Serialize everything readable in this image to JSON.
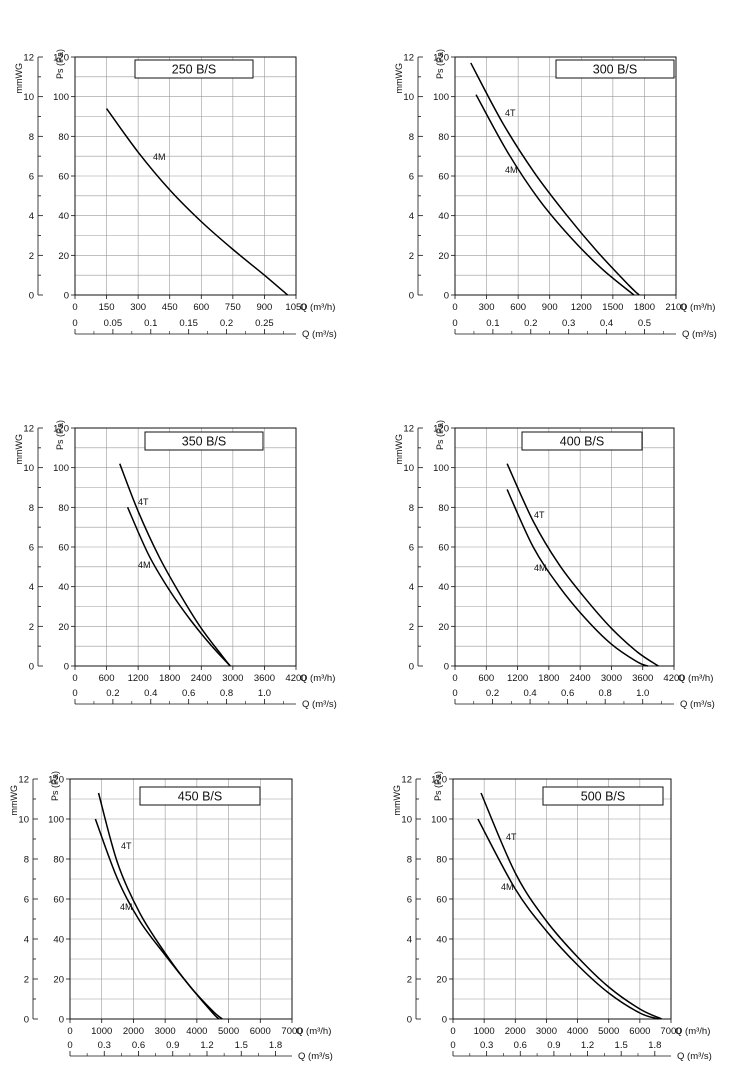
{
  "chart_data": [
    {
      "type": "line",
      "title": "250 B/S",
      "ylabel_left": "mmWG",
      "ylabel_right": "Ps (Pa)",
      "xlabel_primary": "Q (m³/h)",
      "xlabel_secondary": "Q (m³/s)",
      "xlim": [
        0,
        1050
      ],
      "ylim": [
        0,
        120
      ],
      "mmwg_ticks": [
        "0",
        "2",
        "4",
        "6",
        "8",
        "10",
        "12"
      ],
      "pa_ticks": [
        "0",
        "20",
        "40",
        "60",
        "80",
        "100",
        "120"
      ],
      "xticks": [
        0,
        150,
        300,
        450,
        600,
        750,
        900,
        1050
      ],
      "xtick_labels": [
        "0",
        "150",
        "300",
        "450",
        "600",
        "750",
        "900",
        "1050"
      ],
      "x2_ticks": [
        0,
        0.05,
        0.1,
        0.15,
        0.2,
        0.25
      ],
      "x2_tick_labels": [
        "0",
        "0.05",
        "0.1",
        "0.15",
        "0.2",
        "0.25"
      ],
      "grid": true,
      "series": [
        {
          "name": "4M",
          "x": [
            150,
            300,
            450,
            600,
            750,
            900,
            1010
          ],
          "y": [
            94,
            72,
            53,
            37,
            23,
            10,
            0
          ]
        }
      ]
    },
    {
      "type": "line",
      "title": "300 B/S",
      "ylabel_left": "mmWG",
      "ylabel_right": "Ps (Pa)",
      "xlabel_primary": "Q (m³/h)",
      "xlabel_secondary": "Q (m³/s)",
      "xlim": [
        0,
        2100
      ],
      "ylim": [
        0,
        120
      ],
      "mmwg_ticks": [
        "0",
        "2",
        "4",
        "6",
        "8",
        "10",
        "12"
      ],
      "pa_ticks": [
        "0",
        "20",
        "40",
        "60",
        "80",
        "100",
        "120"
      ],
      "xticks": [
        0,
        300,
        600,
        900,
        1200,
        1500,
        1800,
        2100
      ],
      "xtick_labels": [
        "0",
        "300",
        "600",
        "900",
        "1200",
        "1500",
        "1800",
        "2100"
      ],
      "x2_ticks": [
        0,
        0.1,
        0.2,
        0.3,
        0.4,
        0.5
      ],
      "x2_tick_labels": [
        "0",
        "0.1",
        "0.2",
        "0.3",
        "0.4",
        "0.5"
      ],
      "grid": true,
      "series": [
        {
          "name": "4T",
          "x": [
            150,
            450,
            750,
            1050,
            1350,
            1650,
            1750
          ],
          "y": [
            117,
            87,
            62,
            41,
            22,
            5,
            0
          ]
        },
        {
          "name": "4M",
          "x": [
            200,
            500,
            800,
            1100,
            1400,
            1700
          ],
          "y": [
            101,
            72,
            48,
            29,
            13,
            0
          ]
        }
      ]
    },
    {
      "type": "line",
      "title": "350 B/S",
      "ylabel_left": "mmWG",
      "ylabel_right": "Ps (Pa)",
      "xlabel_primary": "Q (m³/h)",
      "xlabel_secondary": "Q (m³/s)",
      "xlim": [
        0,
        4200
      ],
      "ylim": [
        0,
        120
      ],
      "mmwg_ticks": [
        "0",
        "2",
        "4",
        "6",
        "8",
        "10",
        "12"
      ],
      "pa_ticks": [
        "0",
        "20",
        "40",
        "60",
        "80",
        "100",
        "120"
      ],
      "xticks": [
        0,
        600,
        1200,
        1800,
        2400,
        3000,
        3600,
        4200
      ],
      "xtick_labels": [
        "0",
        "600",
        "1200",
        "1800",
        "2400",
        "3000",
        "3600",
        "4200"
      ],
      "x2_ticks": [
        0,
        0.2,
        0.4,
        0.6,
        0.8,
        1.0
      ],
      "x2_tick_labels": [
        "0",
        "0.2",
        "0.4",
        "0.6",
        "0.8",
        "1.0"
      ],
      "grid": true,
      "series": [
        {
          "name": "4T",
          "x": [
            850,
            1200,
            1600,
            2000,
            2400,
            2800,
            2950
          ],
          "y": [
            102,
            78,
            55,
            36,
            19,
            5,
            0
          ]
        },
        {
          "name": "4M",
          "x": [
            1000,
            1400,
            1800,
            2200,
            2600,
            2950
          ],
          "y": [
            80,
            56,
            38,
            23,
            10,
            0
          ]
        }
      ]
    },
    {
      "type": "line",
      "title": "400 B/S",
      "ylabel_left": "mmWG",
      "ylabel_right": "Ps (Pa)",
      "xlabel_primary": "Q (m³/h)",
      "xlabel_secondary": "Q (m³/s)",
      "xlim": [
        0,
        4200
      ],
      "ylim": [
        0,
        120
      ],
      "mmwg_ticks": [
        "0",
        "2",
        "4",
        "6",
        "8",
        "10",
        "12"
      ],
      "pa_ticks": [
        "0",
        "20",
        "40",
        "60",
        "80",
        "100",
        "120"
      ],
      "xticks": [
        0,
        600,
        1200,
        1800,
        2400,
        3000,
        3600,
        4200
      ],
      "xtick_labels": [
        "0",
        "600",
        "1200",
        "1800",
        "2400",
        "3000",
        "3600",
        "4200"
      ],
      "x2_ticks": [
        0,
        0.2,
        0.4,
        0.6,
        0.8,
        1.0
      ],
      "x2_tick_labels": [
        "0",
        "0.2",
        "0.4",
        "0.6",
        "0.8",
        "1.0"
      ],
      "grid": true,
      "series": [
        {
          "name": "4T",
          "x": [
            1000,
            1500,
            2000,
            2500,
            3000,
            3500,
            3900
          ],
          "y": [
            102,
            73,
            51,
            34,
            19,
            7,
            0
          ]
        },
        {
          "name": "4M",
          "x": [
            1000,
            1500,
            2000,
            2500,
            3000,
            3500,
            3700
          ],
          "y": [
            89,
            60,
            40,
            24,
            11,
            2,
            0
          ]
        }
      ]
    },
    {
      "type": "line",
      "title": "450 B/S",
      "ylabel_left": "mmWG",
      "ylabel_right": "Ps (Pa)",
      "xlabel_primary": "Q (m³/h)",
      "xlabel_secondary": "Q (m³/s)",
      "xlim": [
        0,
        7000
      ],
      "ylim": [
        0,
        120
      ],
      "mmwg_ticks": [
        "0",
        "2",
        "4",
        "6",
        "8",
        "10",
        "12"
      ],
      "pa_ticks": [
        "0",
        "20",
        "40",
        "60",
        "80",
        "100",
        "120"
      ],
      "xticks": [
        0,
        1000,
        2000,
        3000,
        4000,
        5000,
        6000,
        7000
      ],
      "xtick_labels": [
        "0",
        "1000",
        "2000",
        "3000",
        "4000",
        "5000",
        "6000",
        "7000"
      ],
      "x2_ticks": [
        0,
        0.3,
        0.6,
        0.9,
        1.2,
        1.5,
        1.8
      ],
      "x2_tick_labels": [
        "0",
        "0.3",
        "0.6",
        "0.9",
        "1.2",
        "1.5",
        "1.8"
      ],
      "grid": true,
      "series": [
        {
          "name": "4T",
          "x": [
            900,
            1500,
            2200,
            3000,
            3800,
            4500,
            4800
          ],
          "y": [
            113,
            78,
            53,
            33,
            16,
            4,
            0
          ]
        },
        {
          "name": "4M",
          "x": [
            800,
            1500,
            2200,
            3000,
            3800,
            4500,
            4700
          ],
          "y": [
            100,
            70,
            49,
            32,
            16,
            3,
            0
          ]
        }
      ]
    },
    {
      "type": "line",
      "title": "500 B/S",
      "ylabel_left": "mmWG",
      "ylabel_right": "Ps (Pa)",
      "xlabel_primary": "Q (m³/h)",
      "xlabel_secondary": "Q (m³/s)",
      "xlim": [
        0,
        7000
      ],
      "ylim": [
        0,
        120
      ],
      "mmwg_ticks": [
        "0",
        "2",
        "4",
        "6",
        "8",
        "10",
        "12"
      ],
      "pa_ticks": [
        "0",
        "20",
        "40",
        "60",
        "80",
        "100",
        "120"
      ],
      "xticks": [
        0,
        1000,
        2000,
        3000,
        4000,
        5000,
        6000,
        7000
      ],
      "xtick_labels": [
        "0",
        "1000",
        "2000",
        "3000",
        "4000",
        "5000",
        "6000",
        "7000"
      ],
      "x2_ticks": [
        0,
        0.3,
        0.6,
        0.9,
        1.2,
        1.5,
        1.8
      ],
      "x2_tick_labels": [
        "0",
        "0.3",
        "0.6",
        "0.9",
        "1.2",
        "1.5",
        "1.8"
      ],
      "grid": true,
      "series": [
        {
          "name": "4T",
          "x": [
            900,
            2000,
            3000,
            4000,
            5000,
            6000,
            6700
          ],
          "y": [
            113,
            73,
            49,
            31,
            16,
            5,
            0
          ]
        },
        {
          "name": "4M",
          "x": [
            800,
            2000,
            3000,
            4000,
            5000,
            6000,
            6600
          ],
          "y": [
            100,
            65,
            44,
            27,
            13,
            3,
            0
          ]
        }
      ]
    }
  ]
}
